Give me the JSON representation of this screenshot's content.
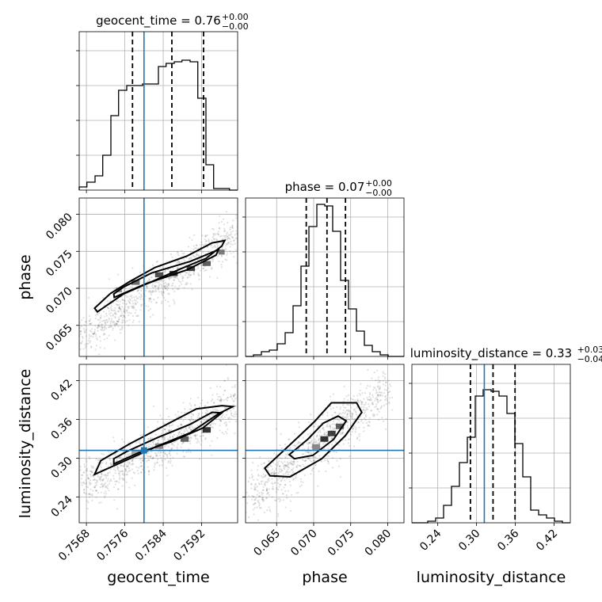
{
  "chart_data": {
    "type": "corner",
    "parameters": [
      {
        "name": "geocent_time",
        "title": "geocent_time = 0.76",
        "median": "0.76",
        "plus": "+0.00",
        "minus": "−0.00",
        "range": [
          0.75665,
          0.75995
        ],
        "ticks": [
          0.7568,
          0.7576,
          0.7584,
          0.7592
        ],
        "tick_labels": [
          "0.7568",
          "0.7576",
          "0.7584",
          "0.7592"
        ],
        "quantiles": [
          0.75776,
          0.75858,
          0.75924
        ],
        "truth": 0.758
      },
      {
        "name": "phase",
        "title": "phase = 0.07",
        "median": "0.07",
        "plus": "+0.00",
        "minus": "−0.00",
        "range": [
          0.0608,
          0.0822
        ],
        "ticks": [
          0.065,
          0.07,
          0.075,
          0.08
        ],
        "tick_labels": [
          "0.065",
          "0.070",
          "0.075",
          "0.080"
        ],
        "quantiles": [
          0.069,
          0.0718,
          0.0743
        ],
        "truth": null
      },
      {
        "name": "luminosity_distance",
        "title": "luminosity_distance = 0.33",
        "median": "0.33",
        "plus": "+0.03",
        "minus": "−0.04",
        "range": [
          0.2,
          0.445
        ],
        "ticks": [
          0.24,
          0.3,
          0.36,
          0.42
        ],
        "tick_labels": [
          "0.24",
          "0.30",
          "0.36",
          "0.42"
        ],
        "quantiles": [
          0.2905,
          0.3255,
          0.3595
        ],
        "truth": 0.312
      }
    ],
    "marginals": {
      "geocent_time": {
        "edges": [
          0.75665,
          0.75681,
          0.75698,
          0.75714,
          0.75731,
          0.75747,
          0.75764,
          0.7578,
          0.75797,
          0.75813,
          0.7583,
          0.75846,
          0.75863,
          0.75879,
          0.75896,
          0.75912,
          0.75929,
          0.75945,
          0.75962,
          0.75978,
          0.75995
        ],
        "heights": [
          0.02,
          0.05,
          0.09,
          0.22,
          0.47,
          0.63,
          0.66,
          0.66,
          0.67,
          0.67,
          0.78,
          0.8,
          0.81,
          0.82,
          0.81,
          0.58,
          0.16,
          0.01,
          0.01,
          0.0
        ]
      },
      "phase": {
        "edges": [
          0.0608,
          0.06187,
          0.06294,
          0.06401,
          0.06508,
          0.06615,
          0.06722,
          0.06829,
          0.06936,
          0.07043,
          0.0715,
          0.07257,
          0.07364,
          0.07471,
          0.07578,
          0.07685,
          0.07792,
          0.07899,
          0.08006,
          0.08113,
          0.0822
        ],
        "heights": [
          0.0,
          0.01,
          0.03,
          0.04,
          0.08,
          0.15,
          0.32,
          0.57,
          0.82,
          0.96,
          0.95,
          0.79,
          0.48,
          0.3,
          0.16,
          0.07,
          0.03,
          0.01,
          0.0,
          0.0
        ]
      },
      "luminosity_distance": {
        "edges": [
          0.2,
          0.21225,
          0.2245,
          0.23675,
          0.249,
          0.26125,
          0.2735,
          0.28575,
          0.298,
          0.31025,
          0.3225,
          0.33475,
          0.347,
          0.35925,
          0.3715,
          0.38375,
          0.396,
          0.40825,
          0.4205,
          0.43275,
          0.445
        ],
        "heights": [
          0.0,
          0.0,
          0.01,
          0.03,
          0.11,
          0.23,
          0.38,
          0.54,
          0.8,
          0.84,
          0.83,
          0.8,
          0.69,
          0.5,
          0.29,
          0.08,
          0.05,
          0.03,
          0.01,
          0.0
        ]
      }
    },
    "pairs": [
      {
        "x": "geocent_time",
        "y": "phase",
        "samples": {
          "x0": 0.75665,
          "x1": 0.75995,
          "y0": 0.0633,
          "y1": 0.0775,
          "spread": 0.0014,
          "n": 900
        },
        "contours": [
          [
            [
              0.75703,
              0.06683
            ],
            [
              0.75757,
              0.06924
            ],
            [
              0.75823,
              0.07109
            ],
            [
              0.75876,
              0.07263
            ],
            [
              0.75929,
              0.07404
            ],
            [
              0.75962,
              0.07571
            ],
            [
              0.75968,
              0.07645
            ],
            [
              0.75942,
              0.07614
            ],
            [
              0.75889,
              0.07435
            ],
            [
              0.75823,
              0.07282
            ],
            [
              0.7577,
              0.07091
            ],
            [
              0.7573,
              0.0693
            ],
            [
              0.75697,
              0.06732
            ]
          ],
          [
            [
              0.75738,
              0.06878
            ],
            [
              0.75803,
              0.0706
            ],
            [
              0.7589,
              0.07251
            ],
            [
              0.7595,
              0.07448
            ],
            [
              0.75955,
              0.07522
            ],
            [
              0.75896,
              0.07363
            ],
            [
              0.75816,
              0.07208
            ],
            [
              0.75757,
              0.07016
            ],
            [
              0.75737,
              0.06924
            ]
          ]
        ],
        "blocks": [
          {
            "x": 0.75741,
            "y": 0.06945,
            "w": 0.00013,
            "h": 0.00068,
            "shade": "#888"
          },
          {
            "x": 0.75774,
            "y": 0.07047,
            "w": 0.00017,
            "h": 0.00068,
            "shade": "#555"
          },
          {
            "x": 0.75823,
            "y": 0.07149,
            "w": 0.00017,
            "h": 0.00068,
            "shade": "#333"
          },
          {
            "x": 0.75853,
            "y": 0.07166,
            "w": 0.00017,
            "h": 0.00068,
            "shade": "#111"
          },
          {
            "x": 0.75889,
            "y": 0.07234,
            "w": 0.00017,
            "h": 0.00068,
            "shade": "#222"
          },
          {
            "x": 0.75922,
            "y": 0.07302,
            "w": 0.00017,
            "h": 0.00068,
            "shade": "#444"
          },
          {
            "x": 0.75955,
            "y": 0.07456,
            "w": 0.00013,
            "h": 0.00068,
            "shade": "#666"
          }
        ]
      },
      {
        "x": "geocent_time",
        "y": "luminosity_distance",
        "samples": {
          "x0": 0.75665,
          "x1": 0.75995,
          "y0": 0.252,
          "y1": 0.388,
          "spread": 0.018,
          "n": 900
        },
        "contours": [
          [
            [
              0.75697,
              0.2748
            ],
            [
              0.75757,
              0.2948
            ],
            [
              0.7583,
              0.3192
            ],
            [
              0.75896,
              0.3391
            ],
            [
              0.75955,
              0.3686
            ],
            [
              0.75985,
              0.3797
            ],
            [
              0.75962,
              0.3812
            ],
            [
              0.75909,
              0.3761
            ],
            [
              0.75836,
              0.3478
            ],
            [
              0.7577,
              0.3221
            ],
            [
              0.7571,
              0.2962
            ]
          ],
          [
            [
              0.75737,
              0.291
            ],
            [
              0.7579,
              0.3087
            ],
            [
              0.75856,
              0.3251
            ],
            [
              0.75922,
              0.3464
            ],
            [
              0.75962,
              0.37
            ],
            [
              0.75942,
              0.3709
            ],
            [
              0.75896,
              0.3523
            ],
            [
              0.7583,
              0.3324
            ],
            [
              0.75764,
              0.3103
            ],
            [
              0.75737,
              0.299
            ]
          ]
        ],
        "blocks": [
          {
            "x": 0.75774,
            "y": 0.3034,
            "w": 0.00017,
            "h": 0.0085,
            "shade": "#999"
          },
          {
            "x": 0.75823,
            "y": 0.3143,
            "w": 0.00017,
            "h": 0.0085,
            "shade": "#777"
          },
          {
            "x": 0.75876,
            "y": 0.3253,
            "w": 0.00017,
            "h": 0.0085,
            "shade": "#444"
          },
          {
            "x": 0.75922,
            "y": 0.3394,
            "w": 0.00017,
            "h": 0.0085,
            "shade": "#111"
          }
        ]
      },
      {
        "x": "phase",
        "y": "luminosity_distance",
        "samples": {
          "x0": 0.0615,
          "x1": 0.08,
          "y0": 0.24,
          "y1": 0.405,
          "spread": 0.02,
          "n": 900
        },
        "contours": [
          [
            [
              0.0634,
              0.2845
            ],
            [
              0.0669,
              0.3218
            ],
            [
              0.0701,
              0.3563
            ],
            [
              0.0724,
              0.3856
            ],
            [
              0.0758,
              0.3856
            ],
            [
              0.0765,
              0.3708
            ],
            [
              0.0743,
              0.335
            ],
            [
              0.0711,
              0.2991
            ],
            [
              0.0668,
              0.2711
            ],
            [
              0.0641,
              0.2727
            ]
          ],
          [
            [
              0.0667,
              0.3054
            ],
            [
              0.0692,
              0.3291
            ],
            [
              0.0713,
              0.3541
            ],
            [
              0.0733,
              0.365
            ],
            [
              0.0744,
              0.3576
            ],
            [
              0.0727,
              0.3291
            ],
            [
              0.0699,
              0.3043
            ],
            [
              0.0674,
              0.2991
            ]
          ]
        ],
        "blocks": [
          {
            "x": 0.0698,
            "y": 0.313,
            "w": 0.00107,
            "h": 0.0085,
            "shade": "#777"
          },
          {
            "x": 0.0709,
            "y": 0.3253,
            "w": 0.00107,
            "h": 0.0085,
            "shade": "#111"
          },
          {
            "x": 0.0719,
            "y": 0.3338,
            "w": 0.00107,
            "h": 0.0085,
            "shade": "#222"
          },
          {
            "x": 0.073,
            "y": 0.3449,
            "w": 0.00107,
            "h": 0.0085,
            "shade": "#444"
          }
        ]
      }
    ],
    "truth_color": "#1f77b4",
    "grid": true,
    "xlabels": [
      "geocent_time",
      "phase",
      "luminosity_distance"
    ],
    "ylabels": [
      "phase",
      "luminosity_distance"
    ]
  }
}
